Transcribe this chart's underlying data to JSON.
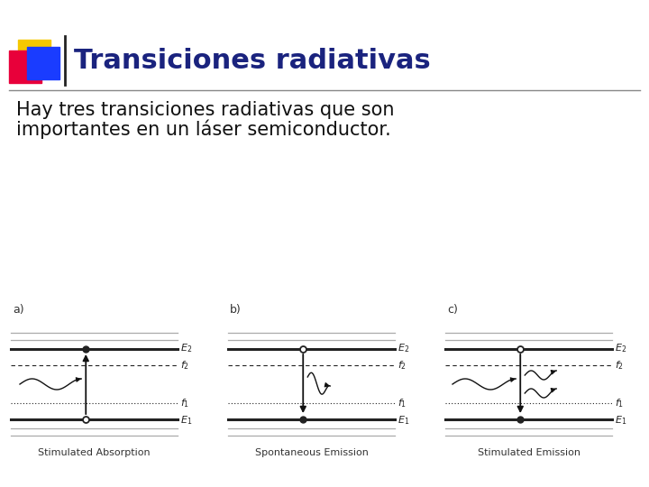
{
  "title": "Transiciones radiativas",
  "subtitle_line1": "Hay tres transiciones radiativas que son",
  "subtitle_line2": "importantes en un láser semiconductor.",
  "bg_color": "#ffffff",
  "title_color": "#1a237e",
  "title_fontsize": 22,
  "subtitle_fontsize": 15,
  "panel_labels": [
    "a)",
    "b)",
    "c)"
  ],
  "panel_captions": [
    "Stimulated Absorption",
    "Spontaneous Emission",
    "Stimulated Emission"
  ],
  "logo_yellow": "#f5c800",
  "logo_red": "#e8003a",
  "logo_blue": "#1a3cff",
  "header_line_color": "#888888",
  "gray_line": "#aaaaaa",
  "bold_line_color": "#222222",
  "arrow_color": "#111111"
}
